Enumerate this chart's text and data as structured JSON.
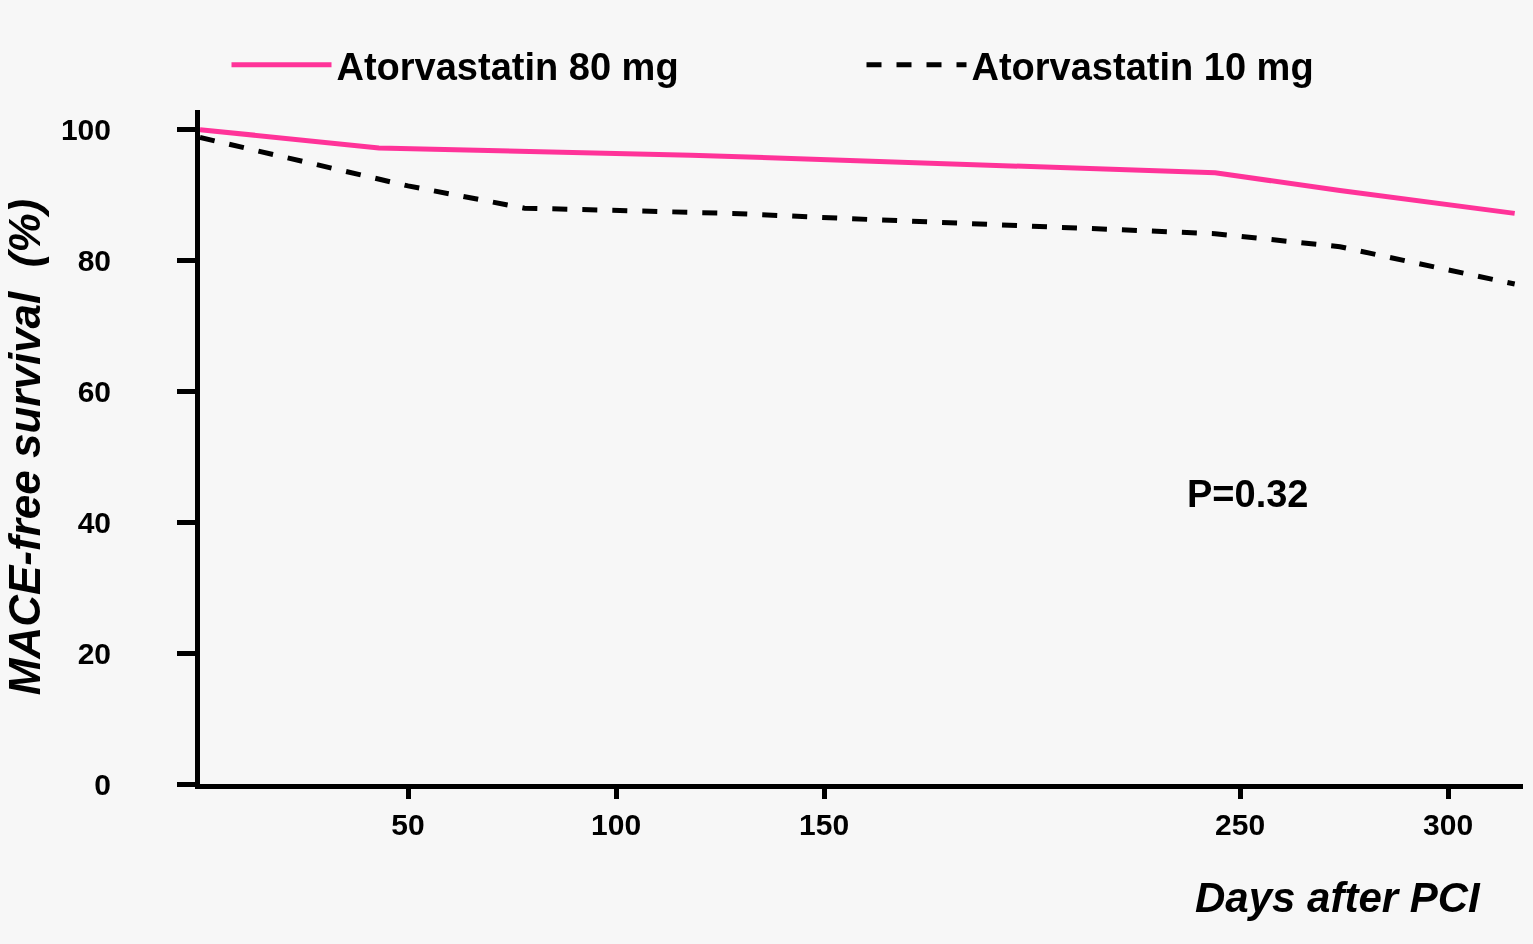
{
  "chart_data": {
    "type": "line",
    "xlabel": "Days after PCI",
    "ylabel": "MACE-free survival  (%)",
    "xlim": [
      0,
      318
    ],
    "xticks": [
      50,
      100,
      150,
      250,
      300
    ],
    "ylim": [
      0,
      103
    ],
    "yticks": [
      0,
      20,
      40,
      60,
      80,
      100
    ],
    "grid": false,
    "legend": "top",
    "marker": "none",
    "annotations": [
      "P=0.32"
    ],
    "series": [
      {
        "name": "Atorvastatin 80 mg",
        "color": "#ff3399",
        "line_style": "solid",
        "x": [
          0,
          43,
          118,
          244,
          274,
          316
        ],
        "values": [
          100,
          97.2,
          96.1,
          93.4,
          90.7,
          87.2
        ]
      },
      {
        "name": "Atorvastatin 10 mg",
        "color": "#000000",
        "line_style": "dashed",
        "x": [
          0,
          50,
          78,
          128,
          156,
          244,
          274,
          316
        ],
        "values": [
          98.8,
          91.4,
          88.0,
          87.2,
          86.4,
          84.1,
          82.1,
          76.4
        ]
      }
    ]
  }
}
